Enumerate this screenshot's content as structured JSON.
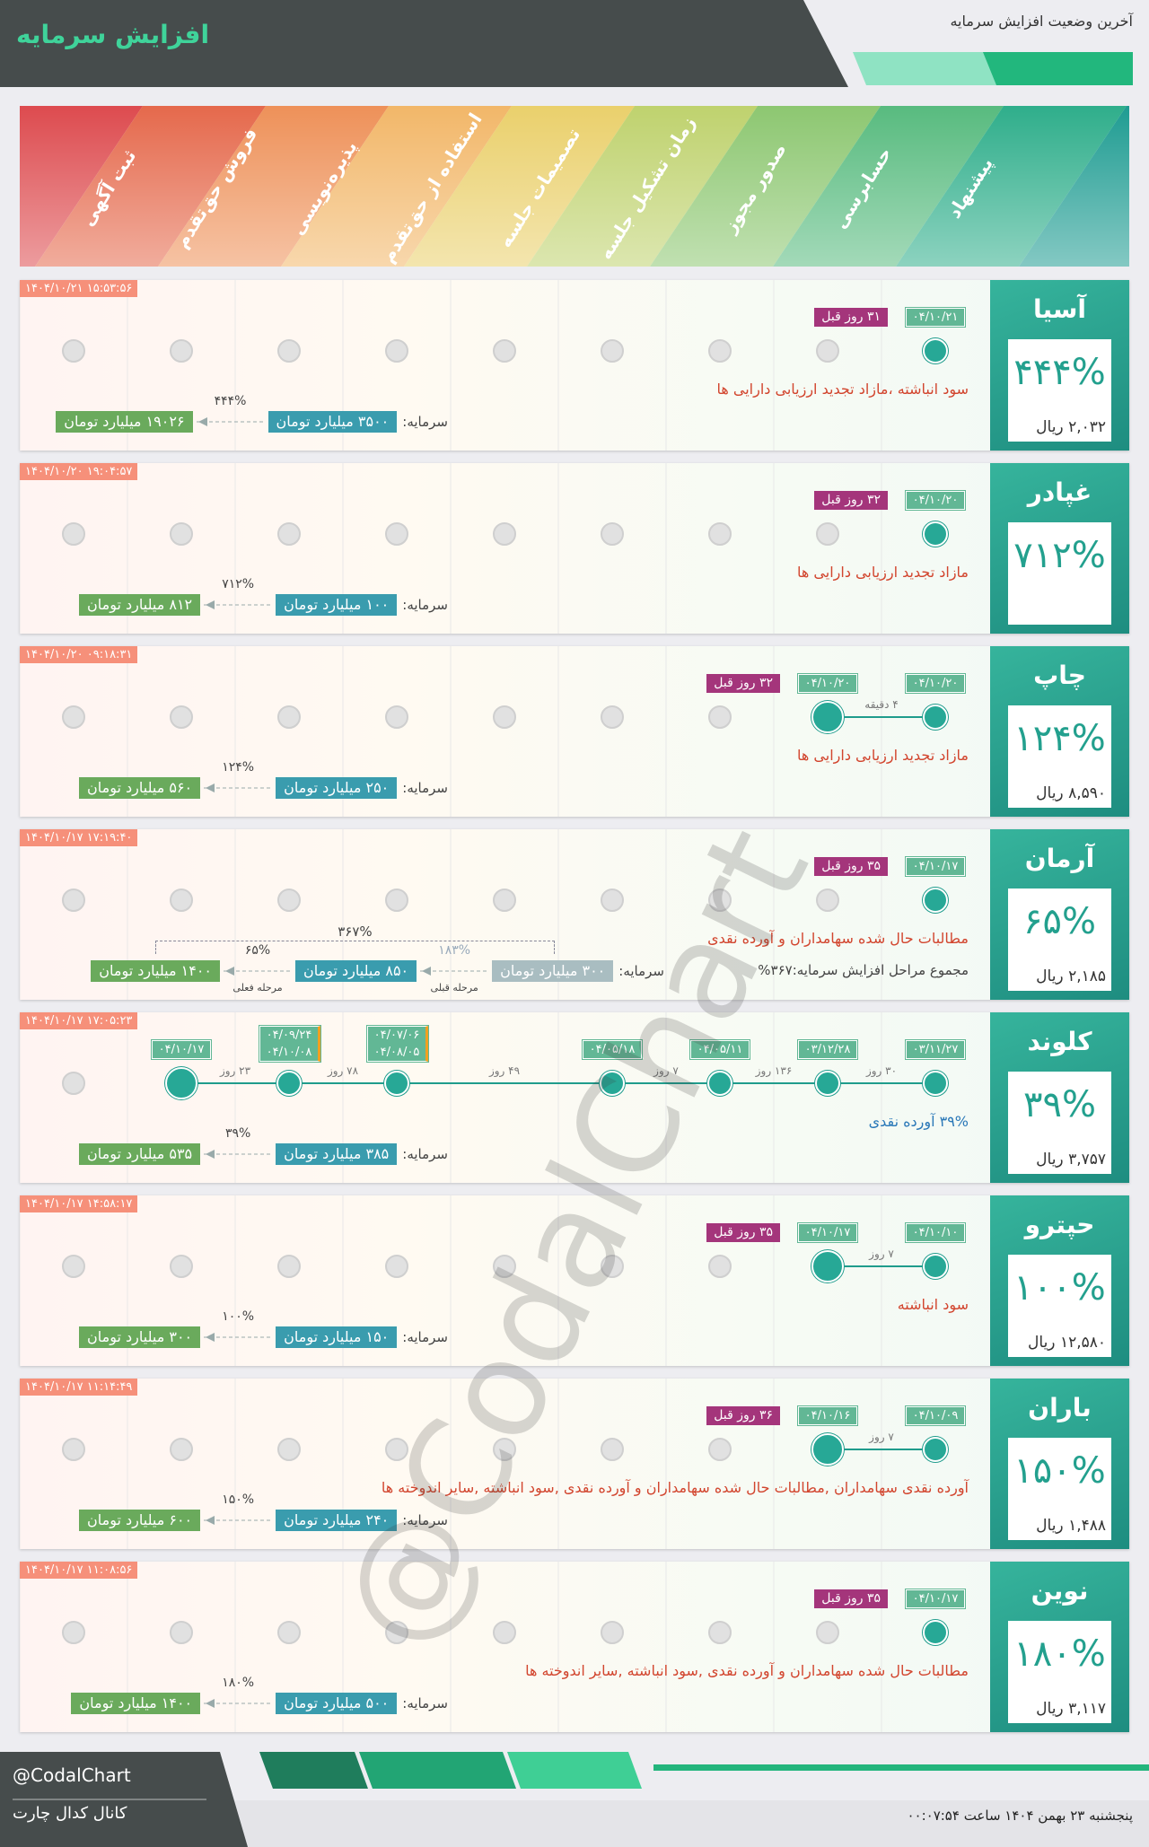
{
  "header": {
    "title": "افزایش سرمایه",
    "subtitle": "آخرین وضعیت افزایش سرمایه"
  },
  "stages": [
    "پیشنهاد",
    "حسابرسی",
    "صدور مجوز",
    "زمان تشکیل جلسه",
    "تصمیمات جلسه",
    "استفاده از حق‌تقدم",
    "پذیره‌نویسی",
    "فروش حق‌تقدم",
    "ثبت آگهی"
  ],
  "capital_label": "سرمایه:",
  "watermark": "@CodalChart",
  "companies": [
    {
      "name": "آسیا",
      "percent": "۴۴۴%",
      "price": "۲,۰۳۲ ریال",
      "stamp": "۱۴۰۴/۱۰/۲۱ ۱۵:۵۳:۵۶",
      "note": "سود انباشته ،مازاد تجدید ارزیابی دارایی ها",
      "note_color": "#d2452e",
      "capital": {
        "from": "۳۵۰۰ میلیارد تومان",
        "pct": "۴۴۴%",
        "to": "۱۹۰۲۶ میلیارد تومان"
      },
      "steps": [
        {
          "stage": 0,
          "dates": [
            "۰۴/۱۰/۲۱"
          ]
        }
      ],
      "gaps": [],
      "ago": "۳۱ روز قبل"
    },
    {
      "name": "غپادر",
      "percent": "۷۱۲%",
      "stamp": "۱۴۰۴/۱۰/۲۰ ۱۹:۰۴:۵۷",
      "note": "مازاد تجدید ارزیابی دارایی ها",
      "note_color": "#d2452e",
      "capital": {
        "from": "۱۰۰ میلیارد تومان",
        "pct": "۷۱۲%",
        "to": "۸۱۲ میلیارد تومان"
      },
      "steps": [
        {
          "stage": 0,
          "dates": [
            "۰۴/۱۰/۲۰"
          ]
        }
      ],
      "gaps": [],
      "ago": "۳۲ روز قبل"
    },
    {
      "name": "چاپ",
      "percent": "۱۲۴%",
      "price": "۸,۵۹۰ ریال",
      "stamp": "۱۴۰۴/۱۰/۲۰ ۰۹:۱۸:۳۱",
      "note": "مازاد تجدید ارزیابی دارایی ها",
      "note_color": "#d2452e",
      "capital": {
        "from": "۲۵۰ میلیارد تومان",
        "pct": "۱۲۴%",
        "to": "۵۶۰ میلیارد تومان"
      },
      "steps": [
        {
          "stage": 0,
          "dates": [
            "۰۴/۱۰/۲۰"
          ]
        },
        {
          "stage": 1,
          "dates": [
            "۰۴/۱۰/۲۰"
          ]
        }
      ],
      "gaps": [
        "۴ دقیقه"
      ],
      "ago": "۳۲ روز قبل"
    },
    {
      "name": "آرمان",
      "percent": "۶۵%",
      "price": "۲,۱۸۵ ریال",
      "stamp": "۱۴۰۴/۱۰/۱۷ ۱۷:۱۹:۴۰",
      "note": "مطالبات حال شده سهامداران و آورده نقدی",
      "note_color": "#d2452e",
      "capital": {
        "previous": "۳۰۰ میلیارد تومان",
        "previous_pct": "۱۸۳%",
        "previous_label": "مرحله قبلی",
        "from": "۸۵۰ میلیارد تومان",
        "pct": "۶۵%",
        "current_label": "مرحله فعلی",
        "to": "۱۴۰۰ میلیارد تومان",
        "total": "۳۶۷%",
        "total_text": "مجموع مراحل افزایش سرمایه:۳۶۷%"
      },
      "steps": [
        {
          "stage": 0,
          "dates": [
            "۰۴/۱۰/۱۷"
          ]
        }
      ],
      "gaps": [],
      "ago": "۳۵ روز قبل"
    },
    {
      "name": "کلوند",
      "percent": "۳۹%",
      "price": "۳,۷۵۷ ریال",
      "stamp": "۱۴۰۴/۱۰/۱۷ ۱۷:۰۵:۲۳",
      "note": "۳۹% آورده نقدی",
      "note_color": "#2a78b8",
      "capital": {
        "from": "۳۸۵ میلیارد تومان",
        "pct": "۳۹%",
        "to": "۵۳۵ میلیارد تومان"
      },
      "steps": [
        {
          "stage": 0,
          "dates": [
            "۰۳/۱۱/۲۷"
          ]
        },
        {
          "stage": 1,
          "dates": [
            "۰۳/۱۲/۲۸"
          ]
        },
        {
          "stage": 2,
          "dates": [
            "۰۴/۰۵/۱۱"
          ]
        },
        {
          "stage": 3,
          "dates": [
            "۰۴/۰۵/۱۸"
          ]
        },
        {
          "stage": 5,
          "dates": [
            "۰۴/۰۷/۰۶",
            "۰۴/۰۸/۰۵"
          ]
        },
        {
          "stage": 6,
          "dates": [
            "۰۴/۰۹/۲۴",
            "۰۴/۱۰/۰۸"
          ]
        },
        {
          "stage": 7,
          "dates": [
            "۰۴/۱۰/۱۷"
          ]
        }
      ],
      "gaps": [
        "۳۰ روز",
        "۱۳۶ روز",
        "۷ روز",
        "۴۹ روز",
        "۷۸ روز",
        "۲۳ روز"
      ]
    },
    {
      "name": "حپترو",
      "percent": "۱۰۰%",
      "price": "۱۲,۵۸۰ ریال",
      "stamp": "۱۴۰۴/۱۰/۱۷ ۱۴:۵۸:۱۷",
      "note": "سود انباشته",
      "note_color": "#d2452e",
      "capital": {
        "from": "۱۵۰ میلیارد تومان",
        "pct": "۱۰۰%",
        "to": "۳۰۰ میلیارد تومان"
      },
      "steps": [
        {
          "stage": 0,
          "dates": [
            "۰۴/۱۰/۱۰"
          ]
        },
        {
          "stage": 1,
          "dates": [
            "۰۴/۱۰/۱۷"
          ]
        }
      ],
      "gaps": [
        "۷ روز"
      ],
      "ago": "۳۵ روز قبل"
    },
    {
      "name": "باران",
      "percent": "۱۵۰%",
      "price": "۱,۴۸۸ ریال",
      "stamp": "۱۴۰۴/۱۰/۱۷ ۱۱:۱۴:۴۹",
      "note": "آورده نقدی سهامداران ,مطالبات حال شده سهامداران و آورده نقدی ,سود انباشته ,سایر اندوخته ها",
      "note_color": "#d2452e",
      "capital": {
        "from": "۲۴۰ میلیارد تومان",
        "pct": "۱۵۰%",
        "to": "۶۰۰ میلیارد تومان"
      },
      "steps": [
        {
          "stage": 0,
          "dates": [
            "۰۴/۱۰/۰۹"
          ]
        },
        {
          "stage": 1,
          "dates": [
            "۰۴/۱۰/۱۶"
          ]
        }
      ],
      "gaps": [
        "۷ روز"
      ],
      "ago": "۳۶ روز قبل"
    },
    {
      "name": "نوین",
      "percent": "۱۸۰%",
      "price": "۳,۱۱۷ ریال",
      "stamp": "۱۴۰۴/۱۰/۱۷ ۱۱:۰۸:۵۶",
      "note": "مطالبات حال شده سهامداران و آورده نقدی ,سود انباشته ,سایر اندوخته ها",
      "note_color": "#d2452e",
      "capital": {
        "from": "۵۰۰ میلیارد تومان",
        "pct": "۱۸۰%",
        "to": "۱۴۰۰ میلیارد تومان"
      },
      "steps": [
        {
          "stage": 0,
          "dates": [
            "۰۴/۱۰/۱۷"
          ]
        }
      ],
      "gaps": [],
      "ago": "۳۵ روز قبل"
    }
  ],
  "footer": {
    "handle": "@CodalChart",
    "channel": "کانال کدال چارت",
    "date": "پنجشنبه ۲۳ بهمن ۱۴۰۴ ساعت ۰۰:۰۷:۵۴"
  }
}
